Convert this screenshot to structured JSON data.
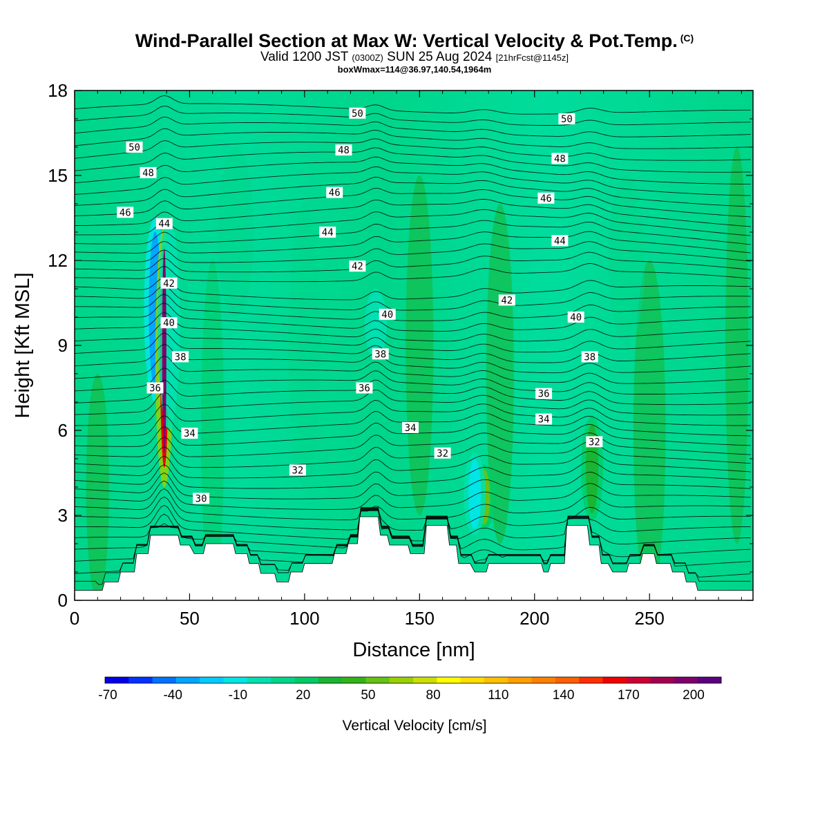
{
  "title": {
    "main": "Wind-Parallel Section at Max W: Vertical Velocity & Pot.Temp.",
    "copyright": "(C)",
    "valid": "Valid 1200 JST",
    "zulu": "(0300Z)",
    "date": "SUN 25 Aug 2024",
    "forecast": "[21hrFcst@1145z]",
    "box": "boxWmax=114@36.97,140.54,1964m"
  },
  "chart_data": {
    "type": "heatmap",
    "xlabel": "Distance [nm]",
    "ylabel": "Height [Kft MSL]",
    "xlim": [
      0,
      295
    ],
    "ylim": [
      0,
      18
    ],
    "x_ticks": [
      "0",
      "50",
      "100",
      "150",
      "200",
      "250"
    ],
    "y_ticks": [
      "0",
      "3",
      "6",
      "9",
      "12",
      "15",
      "18"
    ],
    "colorbar": {
      "title": "Vertical Velocity [cm/s]",
      "tick_labels": [
        "-70",
        "-40",
        "-10",
        "20",
        "50",
        "80",
        "110",
        "140",
        "170",
        "200"
      ],
      "colors": [
        "#0000e6",
        "#0033ff",
        "#0073ff",
        "#00a6ff",
        "#00ccff",
        "#00e6e6",
        "#00e0b0",
        "#00d68a",
        "#00cc66",
        "#1ab533",
        "#33b31a",
        "#66c214",
        "#99d100",
        "#ccdf00",
        "#ffff00",
        "#ffdd00",
        "#ffc000",
        "#ffa000",
        "#ff8000",
        "#ff6000",
        "#ff3000",
        "#f00000",
        "#cc0033",
        "#a3004f",
        "#80006b",
        "#5c0080"
      ]
    },
    "terrain_kft": [
      [
        0,
        0.35
      ],
      [
        12,
        0.35
      ],
      [
        13,
        0.65
      ],
      [
        19,
        0.65
      ],
      [
        20,
        1.0
      ],
      [
        26,
        1.0
      ],
      [
        27,
        1.65
      ],
      [
        32,
        1.65
      ],
      [
        33,
        2.3
      ],
      [
        45,
        2.3
      ],
      [
        46,
        1.95
      ],
      [
        50,
        1.95
      ],
      [
        52,
        1.65
      ],
      [
        56,
        1.65
      ],
      [
        57,
        2.0
      ],
      [
        69,
        2.0
      ],
      [
        70,
        1.65
      ],
      [
        75,
        1.65
      ],
      [
        76,
        1.3
      ],
      [
        80,
        1.3
      ],
      [
        81,
        0.95
      ],
      [
        87,
        0.95
      ],
      [
        88,
        0.65
      ],
      [
        93,
        0.65
      ],
      [
        94,
        1.0
      ],
      [
        99,
        1.0
      ],
      [
        100,
        1.3
      ],
      [
        112,
        1.3
      ],
      [
        113,
        1.65
      ],
      [
        118,
        1.65
      ],
      [
        119,
        2.0
      ],
      [
        123,
        2.0
      ],
      [
        124,
        2.95
      ],
      [
        132,
        2.95
      ],
      [
        133,
        2.3
      ],
      [
        136,
        2.3
      ],
      [
        137,
        1.95
      ],
      [
        145,
        1.95
      ],
      [
        146,
        1.65
      ],
      [
        152,
        1.65
      ],
      [
        153,
        2.65
      ],
      [
        162,
        2.65
      ],
      [
        163,
        1.95
      ],
      [
        166,
        1.95
      ],
      [
        167,
        1.3
      ],
      [
        172,
        1.3
      ],
      [
        174,
        1.0
      ],
      [
        179,
        1.0
      ],
      [
        180,
        1.3
      ],
      [
        203,
        1.3
      ],
      [
        204,
        1.0
      ],
      [
        206,
        1.0
      ],
      [
        207,
        1.3
      ],
      [
        213,
        1.3
      ],
      [
        214,
        2.65
      ],
      [
        223,
        2.65
      ],
      [
        224,
        1.95
      ],
      [
        228,
        1.95
      ],
      [
        229,
        1.3
      ],
      [
        232,
        1.3
      ],
      [
        234,
        1.0
      ],
      [
        240,
        1.0
      ],
      [
        241,
        1.3
      ],
      [
        246,
        1.3
      ],
      [
        247,
        1.65
      ],
      [
        252,
        1.65
      ],
      [
        253,
        1.3
      ],
      [
        259,
        1.3
      ],
      [
        260,
        1.0
      ],
      [
        265,
        1.0
      ],
      [
        266,
        0.65
      ],
      [
        270,
        0.65
      ],
      [
        271,
        0.35
      ],
      [
        295,
        0.35
      ]
    ],
    "vertical_velocity_features": [
      {
        "x": 35,
        "ymin": 7.0,
        "ymax": 13.5,
        "w_cms": -40
      },
      {
        "x": 39,
        "ymin": 4.0,
        "ymax": 13.2,
        "w_cms": 140
      },
      {
        "x": 41,
        "ymin": 6.0,
        "ymax": 13.5,
        "w_cms": -10
      },
      {
        "x": 178,
        "ymin": 2.5,
        "ymax": 4.8,
        "w_cms": 40
      },
      {
        "x": 174,
        "ymin": 2.3,
        "ymax": 5.2,
        "w_cms": -20
      },
      {
        "x": 131,
        "ymin": 8.5,
        "ymax": 11.0,
        "w_cms": -10
      },
      {
        "x": 225,
        "ymin": 2.8,
        "ymax": 6.5,
        "w_cms": 25
      }
    ],
    "potential_temperature_labels": [
      {
        "value": "50",
        "x": 26,
        "y": 16.0
      },
      {
        "value": "48",
        "x": 32,
        "y": 15.1
      },
      {
        "value": "46",
        "x": 22,
        "y": 13.7
      },
      {
        "value": "44",
        "x": 39,
        "y": 13.3
      },
      {
        "value": "42",
        "x": 41,
        "y": 11.2
      },
      {
        "value": "40",
        "x": 41,
        "y": 9.8
      },
      {
        "value": "38",
        "x": 46,
        "y": 8.6
      },
      {
        "value": "36",
        "x": 35,
        "y": 7.5
      },
      {
        "value": "34",
        "x": 50,
        "y": 5.9
      },
      {
        "value": "30",
        "x": 55,
        "y": 3.6
      },
      {
        "value": "32",
        "x": 97,
        "y": 4.6
      },
      {
        "value": "50",
        "x": 123,
        "y": 17.2
      },
      {
        "value": "48",
        "x": 117,
        "y": 15.9
      },
      {
        "value": "46",
        "x": 113,
        "y": 14.4
      },
      {
        "value": "44",
        "x": 110,
        "y": 13.0
      },
      {
        "value": "42",
        "x": 123,
        "y": 11.8
      },
      {
        "value": "40",
        "x": 136,
        "y": 10.1
      },
      {
        "value": "38",
        "x": 133,
        "y": 8.7
      },
      {
        "value": "36",
        "x": 126,
        "y": 7.5
      },
      {
        "value": "34",
        "x": 146,
        "y": 6.1
      },
      {
        "value": "32",
        "x": 160,
        "y": 5.2
      },
      {
        "value": "50",
        "x": 214,
        "y": 17.0
      },
      {
        "value": "48",
        "x": 211,
        "y": 15.6
      },
      {
        "value": "46",
        "x": 205,
        "y": 14.2
      },
      {
        "value": "44",
        "x": 211,
        "y": 12.7
      },
      {
        "value": "42",
        "x": 188,
        "y": 10.6
      },
      {
        "value": "40",
        "x": 218,
        "y": 10.0
      },
      {
        "value": "38",
        "x": 224,
        "y": 8.6
      },
      {
        "value": "36",
        "x": 204,
        "y": 7.3
      },
      {
        "value": "34",
        "x": 204,
        "y": 6.4
      },
      {
        "value": "32",
        "x": 226,
        "y": 5.6
      }
    ],
    "grid": false
  }
}
